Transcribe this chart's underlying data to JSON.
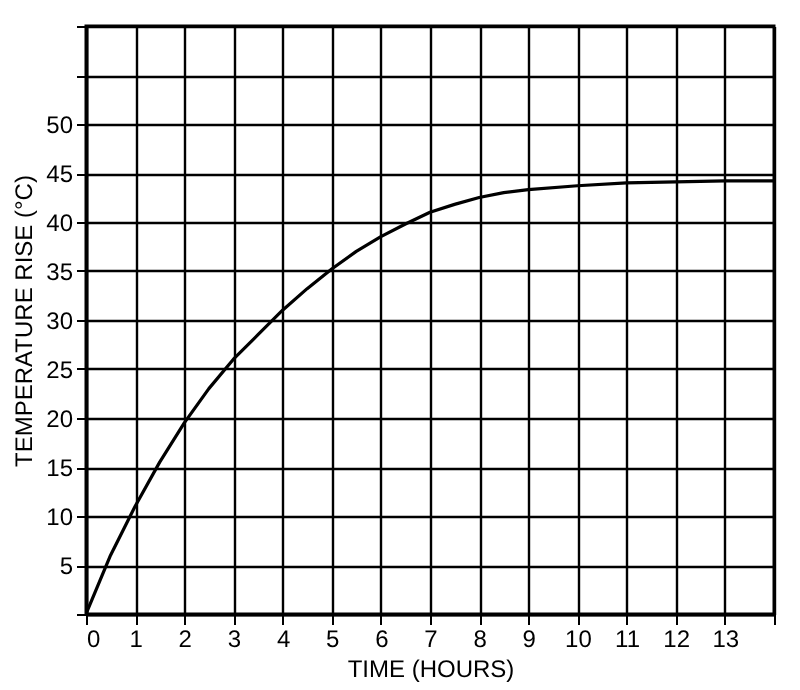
{
  "chart_data": {
    "type": "line",
    "xlabel": "TIME (HOURS)",
    "ylabel": "TEMPERATURE   RISE (°C)",
    "x": [
      0,
      0.5,
      1,
      1.5,
      2,
      2.5,
      3,
      3.5,
      4,
      4.5,
      5,
      5.5,
      6,
      6.5,
      7,
      7.5,
      8,
      8.5,
      9,
      10,
      11,
      12,
      13,
      14
    ],
    "series": [
      {
        "color": "#000000",
        "values": [
          0,
          6,
          11,
          15.5,
          19.5,
          23,
          26,
          28.5,
          31,
          33.2,
          35.2,
          37,
          38.5,
          39.8,
          41,
          41.8,
          42.5,
          43,
          43.3,
          43.7,
          44,
          44.1,
          44.2,
          44.2
        ]
      }
    ],
    "xlim": [
      0,
      14
    ],
    "ylim": [
      0,
      60
    ],
    "xticks": [
      0,
      1,
      2,
      3,
      4,
      5,
      6,
      7,
      8,
      9,
      10,
      11,
      12,
      13,
      {
        "value": 14,
        "label": null
      }
    ],
    "yticks": [
      {
        "value": 0,
        "label": null
      },
      5,
      10,
      15,
      20,
      25,
      30,
      35,
      40,
      45,
      50,
      {
        "value": 55,
        "label": null
      },
      {
        "value": 60,
        "label": null
      }
    ],
    "grid": true,
    "marker": "none",
    "line_style": "solid"
  }
}
